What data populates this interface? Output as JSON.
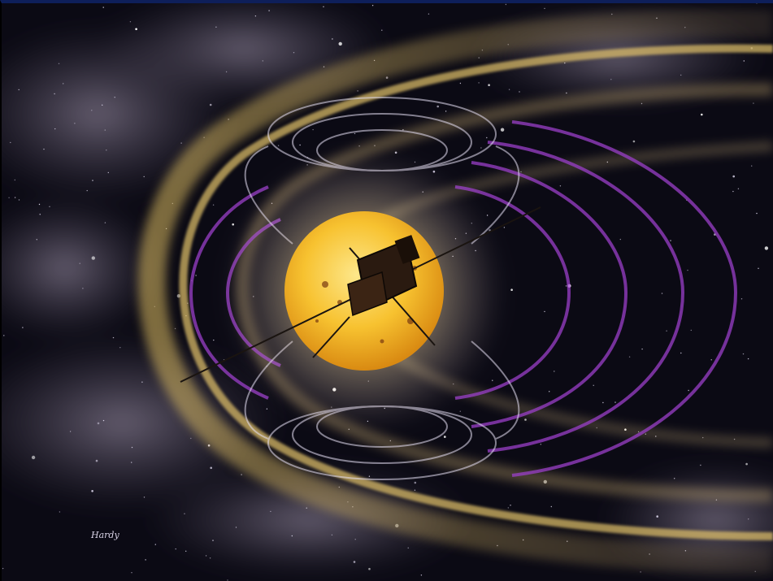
{
  "artwork": {
    "signature": "Hardy",
    "colors": {
      "space": "#0b0a14",
      "nebula": "#8a7f98",
      "sun_core": "#f7c230",
      "sun_edge": "#d98a12",
      "bow_shock": "#e8c060",
      "field_lines": "#9a3fc8",
      "spacecraft": "#2a1a10",
      "top_border": "#0e1f5a"
    }
  }
}
